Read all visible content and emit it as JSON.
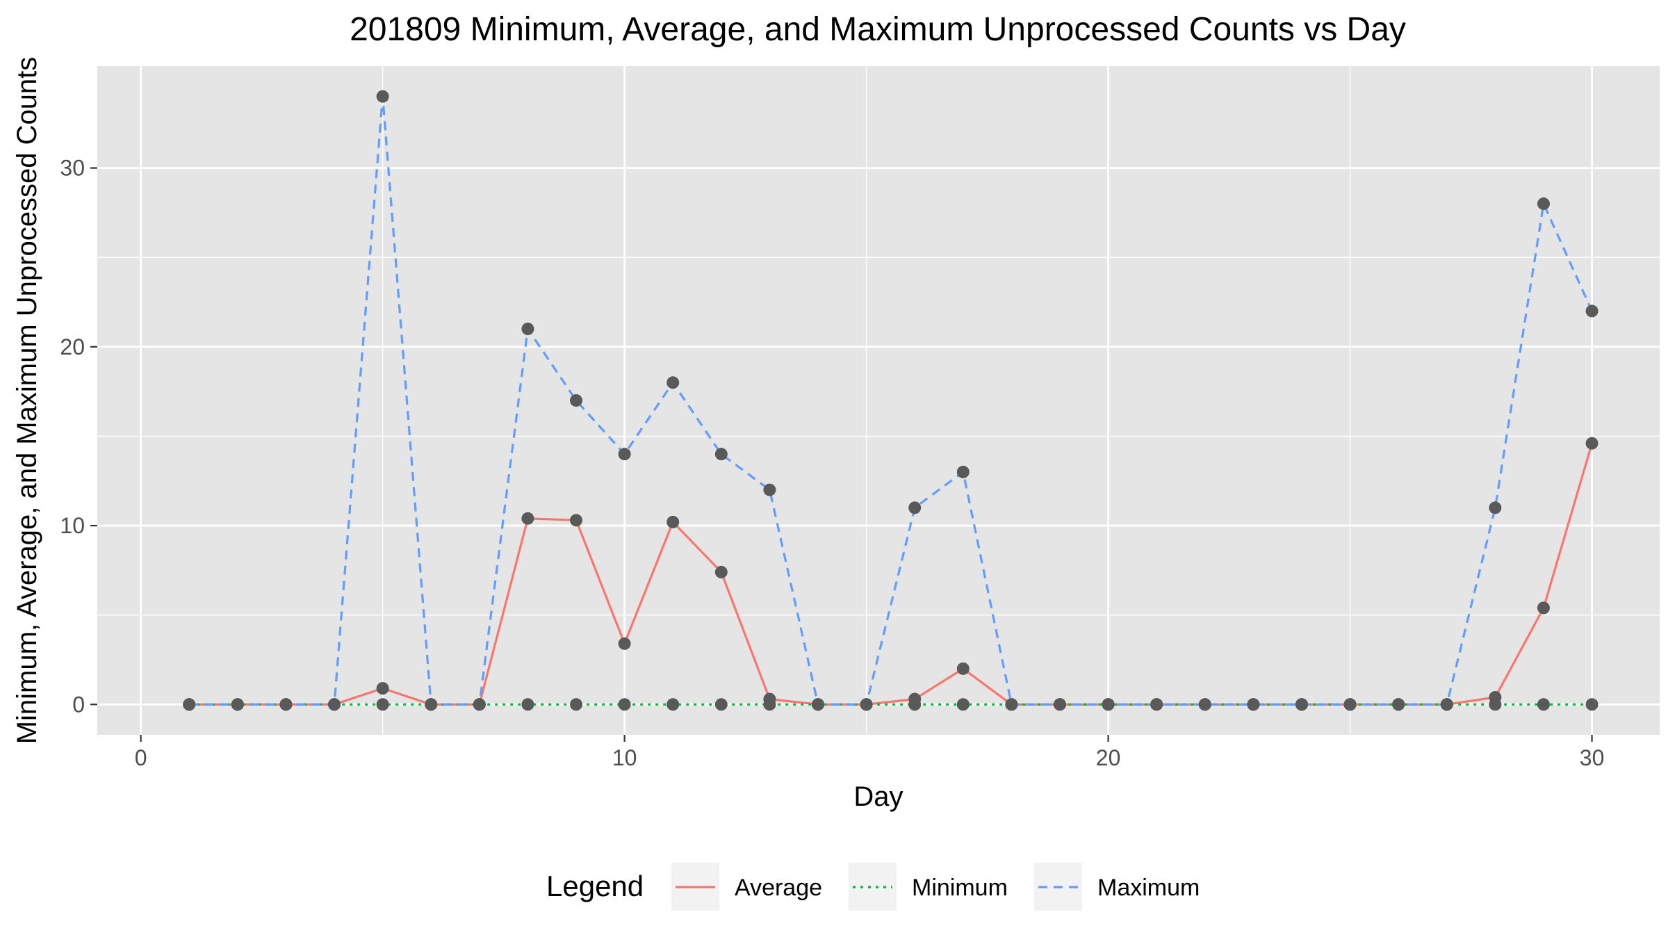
{
  "chart_data": {
    "type": "line",
    "title": "201809 Minimum, Average, and Maximum Unprocessed Counts vs Day",
    "xlabel": "Day",
    "ylabel": "Minimum, Average, and Maximum Unprocessed Counts",
    "xlim": [
      -0.9,
      31.4
    ],
    "ylim": [
      -1.7,
      35.7
    ],
    "x_ticks": [
      0,
      10,
      20,
      30
    ],
    "y_ticks": [
      0,
      10,
      20,
      30
    ],
    "x_tick_labels": [
      "0",
      "10",
      "20",
      "30"
    ],
    "y_tick_labels": [
      "0",
      "10",
      "20",
      "30"
    ],
    "grid": true,
    "legend_position": "bottom",
    "legend_title": "Legend",
    "point_color": "#595959",
    "panel_color": "#e5e5e5",
    "x": [
      1,
      2,
      3,
      4,
      5,
      6,
      7,
      8,
      9,
      10,
      11,
      12,
      13,
      14,
      15,
      16,
      17,
      18,
      19,
      20,
      21,
      22,
      23,
      24,
      25,
      26,
      27,
      28,
      29,
      30
    ],
    "series": [
      {
        "name": "Average",
        "color": "#f8766d",
        "dash": "solid",
        "values": [
          0,
          0,
          0,
          0,
          0.9,
          0,
          0,
          10.4,
          10.3,
          3.4,
          10.2,
          7.4,
          0.3,
          0,
          0,
          0.3,
          2.0,
          0,
          0,
          0,
          0,
          0,
          0,
          0,
          0,
          0,
          0,
          0.4,
          5.4,
          14.6
        ]
      },
      {
        "name": "Minimum",
        "color": "#00ba38",
        "dash": "dotted",
        "values": [
          0,
          0,
          0,
          0,
          0,
          0,
          0,
          0,
          0,
          0,
          0,
          0,
          0,
          0,
          0,
          0,
          0,
          0,
          0,
          0,
          0,
          0,
          0,
          0,
          0,
          0,
          0,
          0,
          0,
          0
        ]
      },
      {
        "name": "Maximum",
        "color": "#619cff",
        "dash": "dashed",
        "values": [
          0,
          0,
          0,
          0,
          34,
          0,
          0,
          21,
          17,
          14,
          18,
          14,
          12,
          0,
          0,
          11,
          13,
          0,
          0,
          0,
          0,
          0,
          0,
          0,
          0,
          0,
          0,
          11,
          28,
          22
        ]
      }
    ]
  }
}
